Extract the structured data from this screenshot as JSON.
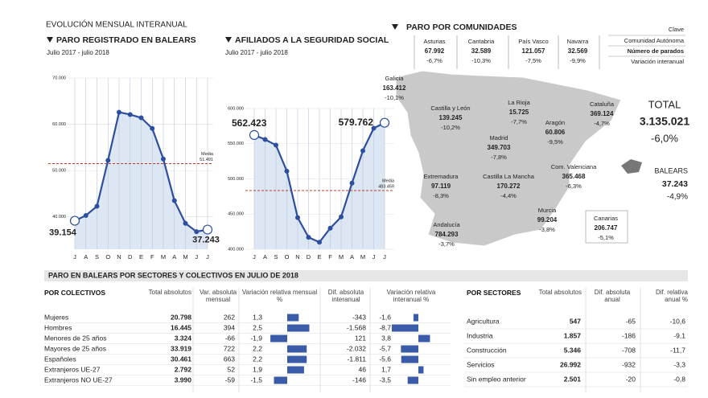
{
  "header": "EVOLUCIÓN MENSUAL INTERANUAL",
  "chart_data": [
    {
      "type": "line",
      "title": "PARO REGISTRADO EN BALEARS",
      "subtitle": "Julio 2017 - julio 2018",
      "categories": [
        "J",
        "A",
        "S",
        "O",
        "N",
        "D",
        "E",
        "F",
        "M",
        "A",
        "M",
        "J",
        "J"
      ],
      "values": [
        39154,
        40300,
        42300,
        52200,
        62600,
        62100,
        61400,
        59100,
        52500,
        43500,
        38600,
        36800,
        37243
      ],
      "value_labels": [
        "39.154",
        null,
        null,
        null,
        null,
        null,
        null,
        null,
        null,
        null,
        null,
        null,
        "37.243"
      ],
      "color": "#2d4f9e",
      "ylim": [
        33000,
        70000
      ],
      "yticks": [
        {
          "value": 40000,
          "label": "40.000"
        },
        {
          "value": 50000,
          "label": "50.000"
        },
        {
          "value": 60000,
          "label": "60.000"
        },
        {
          "value": 70000,
          "label": "70.000"
        }
      ],
      "grid": true,
      "reference": {
        "label": "Media",
        "value": 51491,
        "value_label": "51.491"
      }
    },
    {
      "type": "line",
      "title": "AFILIADOS A LA SEGURIDAD SOCIAL",
      "subtitle": "Julio 2017 - julio 2018",
      "categories": [
        "J",
        "A",
        "S",
        "O",
        "N",
        "D",
        "E",
        "F",
        "M",
        "A",
        "M",
        "J",
        "J"
      ],
      "values": [
        562423,
        556000,
        548000,
        511000,
        445000,
        417000,
        410000,
        430000,
        446000,
        494000,
        540000,
        572000,
        579762
      ],
      "value_labels": [
        "562.423",
        null,
        null,
        null,
        null,
        null,
        null,
        null,
        null,
        null,
        null,
        null,
        "579.762"
      ],
      "color": "#2d4f9e",
      "ylim": [
        400000,
        600000
      ],
      "yticks": [
        {
          "value": 400000,
          "label": "400.000"
        },
        {
          "value": 450000,
          "label": "450.000"
        },
        {
          "value": 500000,
          "label": "500.000"
        },
        {
          "value": 550000,
          "label": "550.000"
        },
        {
          "value": 600000,
          "label": "600.000"
        }
      ],
      "grid": true,
      "reference": {
        "label": "Media",
        "value": 483459,
        "value_label": "483.459"
      }
    }
  ],
  "map": {
    "title": "PARO POR COMUNIDADES",
    "key": {
      "title": "Clave",
      "lines": [
        "Comunidad Autónoma",
        "Número de parados",
        "Variación interanual"
      ]
    },
    "regions": [
      {
        "name": "Asturias",
        "value": "67.992",
        "change": "-6,7%"
      },
      {
        "name": "Cantabria",
        "value": "32.589",
        "change": "-10,3%"
      },
      {
        "name": "País Vasco",
        "value": "121.057",
        "change": "-7,5%"
      },
      {
        "name": "Navarra",
        "value": "32.569",
        "change": "-9,9%"
      },
      {
        "name": "Galicia",
        "value": "163.412",
        "change": "-10,1%"
      },
      {
        "name": "Castilla y León",
        "value": "139.245",
        "change": "-10,2%"
      },
      {
        "name": "La Rioja",
        "value": "15.725",
        "change": "-7,7%"
      },
      {
        "name": "Aragón",
        "value": "60.806",
        "change": "-9,5%"
      },
      {
        "name": "Cataluña",
        "value": "369.124",
        "change": "-4,7%"
      },
      {
        "name": "Madrid",
        "value": "349.703",
        "change": "-7,8%"
      },
      {
        "name": "Extremadura",
        "value": "97.119",
        "change": "-8,3%"
      },
      {
        "name": "Castilla La Mancha",
        "value": "170.272",
        "change": "-4,4%"
      },
      {
        "name": "Com. Valenciana",
        "value": "365.468",
        "change": "-6,3%"
      },
      {
        "name": "Murcia",
        "value": "99.204",
        "change": "-3,8%"
      },
      {
        "name": "Andalucía",
        "value": "784.293",
        "change": "-3,7%"
      },
      {
        "name": "Canarias",
        "value": "206.747",
        "change": "-5,1%"
      }
    ],
    "total": {
      "label": "TOTAL",
      "value": "3.135.021",
      "change": "-6,0%"
    },
    "balears": {
      "name": "BALEARS",
      "value": "37.243",
      "change": "-4,9%"
    }
  },
  "tables": {
    "title": "PARO EN BALEARS POR SECTORES Y COLECTIVOS EN JULIO DE 2018",
    "colectivos": {
      "headers": [
        "POR COLECTIVOS",
        "Total absolutos",
        "Var. absoluta mensual",
        "Variación relativa mensual %",
        "Dif. absoluta interanual",
        "Variación relativa interanual %"
      ],
      "rows": [
        [
          "Mujeres",
          "20.798",
          "262",
          "1,3",
          "-343",
          "-1,6"
        ],
        [
          "Hombres",
          "16.445",
          "394",
          "2,5",
          "-1.568",
          "-8,7"
        ],
        [
          "Menores de 25 años",
          "3.324",
          "-66",
          "-1,9",
          "121",
          "3,8"
        ],
        [
          "Mayores de 25 años",
          "33.919",
          "722",
          "2,2",
          "-2.032",
          "-5,7"
        ],
        [
          "Españoles",
          "30.461",
          "663",
          "2,2",
          "-1.811",
          "-5,6"
        ],
        [
          "Extranjeros UE-27",
          "2.792",
          "52",
          "1,9",
          "46",
          "1,7"
        ],
        [
          "Extranjeros NO UE-27",
          "3.990",
          "-59",
          "-1,5",
          "-146",
          "-3,5"
        ]
      ]
    },
    "sectores": {
      "headers": [
        "POR SECTORES",
        "Total absolutos",
        "Dif. absoluta anual",
        "Dif. relativa anual %"
      ],
      "rows": [
        [
          "Agricultura",
          "547",
          "-65",
          "-10,6"
        ],
        [
          "Industria",
          "1.857",
          "-186",
          "-9,1"
        ],
        [
          "Construcción",
          "5.346",
          "-708",
          "-11,7"
        ],
        [
          "Servicios",
          "26.992",
          "-932",
          "-3,3"
        ],
        [
          "Sin empleo anterior",
          "2.501",
          "-20",
          "-0,8"
        ]
      ]
    }
  }
}
